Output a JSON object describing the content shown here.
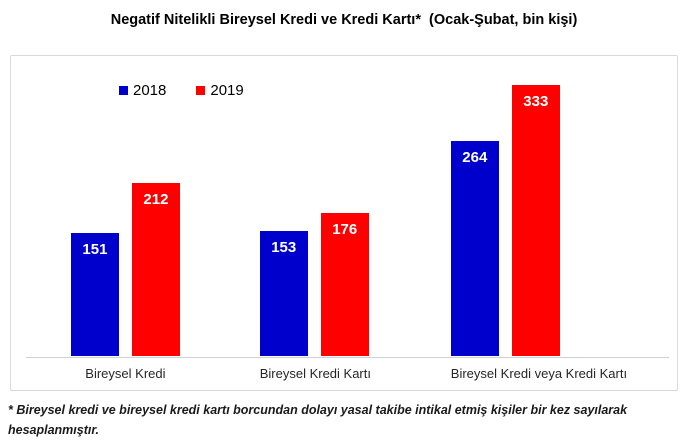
{
  "title": "Negatif Nitelikli Bireysel Kredi ve Kredi Kartı*  (Ocak-Şubat, bin kişi)",
  "footnote": "* Bireysel kredi ve bireysel kredi kartı borcundan dolayı yasal takibe intikal etmiş kişiler bir kez sayılarak hesaplanmıştır.",
  "chart_data": {
    "type": "bar",
    "title": "Negatif Nitelikli Bireysel Kredi ve Kredi Kartı* (Ocak-Şubat, bin kişi)",
    "categories": [
      "Bireysel Kredi",
      "Bireysel Kredi Kartı",
      "Bireysel Kredi veya Kredi Kartı"
    ],
    "series": [
      {
        "name": "2018",
        "color": "#0000cc",
        "values": [
          151,
          153,
          264
        ]
      },
      {
        "name": "2019",
        "color": "#ff0000",
        "values": [
          212,
          176,
          333
        ]
      }
    ],
    "xlabel": "",
    "ylabel": "",
    "ylim": [
      0,
      368
    ],
    "grid": false,
    "legend_position": "top-left",
    "value_labels": "inside-top-white-bold",
    "axis_line_color": "#d0d0d0",
    "border_color": "#d9d9d9"
  }
}
